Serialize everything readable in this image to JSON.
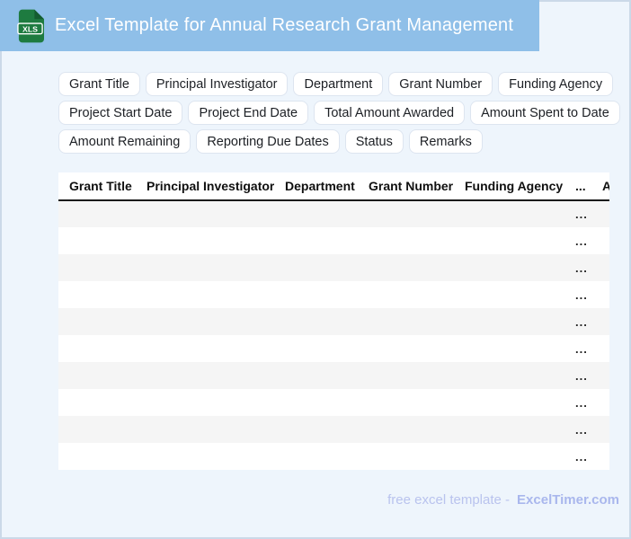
{
  "theme": {
    "header_bg": "#8fbfe8",
    "page_bg": "#eef5fc",
    "border": "#cbd9e8",
    "chip_border": "#dde5f0",
    "stripe": "#f5f5f5",
    "icon_green": "#1e7b40",
    "icon_green_dark": "#145c30",
    "footer_text": "#b9c3ee",
    "footer_brand": "#a9b7ed"
  },
  "header": {
    "title": "Excel Template for Annual Research Grant Management",
    "icon": {
      "label": "XLS"
    }
  },
  "chips": {
    "rows": [
      [
        "Grant Title",
        "Principal Investigator",
        "Department",
        "Grant Number",
        "Funding Agency"
      ],
      [
        "Project Start Date",
        "Project End Date",
        "Total Amount Awarded",
        "Amount Spent to Date"
      ],
      [
        "Amount Remaining",
        "Reporting Due Dates",
        "Status",
        "Remarks"
      ]
    ]
  },
  "table": {
    "headers": [
      "Grant Title",
      "Principal Investigator",
      "Department",
      "Grant Number",
      "Funding Agency",
      "...",
      "A"
    ],
    "rows": [
      [
        "",
        "",
        "",
        "",
        "",
        "...",
        ""
      ],
      [
        "",
        "",
        "",
        "",
        "",
        "...",
        ""
      ],
      [
        "",
        "",
        "",
        "",
        "",
        "...",
        ""
      ],
      [
        "",
        "",
        "",
        "",
        "",
        "...",
        ""
      ],
      [
        "",
        "",
        "",
        "",
        "",
        "...",
        ""
      ],
      [
        "",
        "",
        "",
        "",
        "",
        "...",
        ""
      ],
      [
        "",
        "",
        "",
        "",
        "",
        "...",
        ""
      ],
      [
        "",
        "",
        "",
        "",
        "",
        "...",
        ""
      ],
      [
        "",
        "",
        "",
        "",
        "",
        "...",
        ""
      ],
      [
        "",
        "",
        "",
        "",
        "",
        "...",
        ""
      ]
    ]
  },
  "footer": {
    "prefix": "free excel template -",
    "brand": "ExcelTimer.com"
  }
}
